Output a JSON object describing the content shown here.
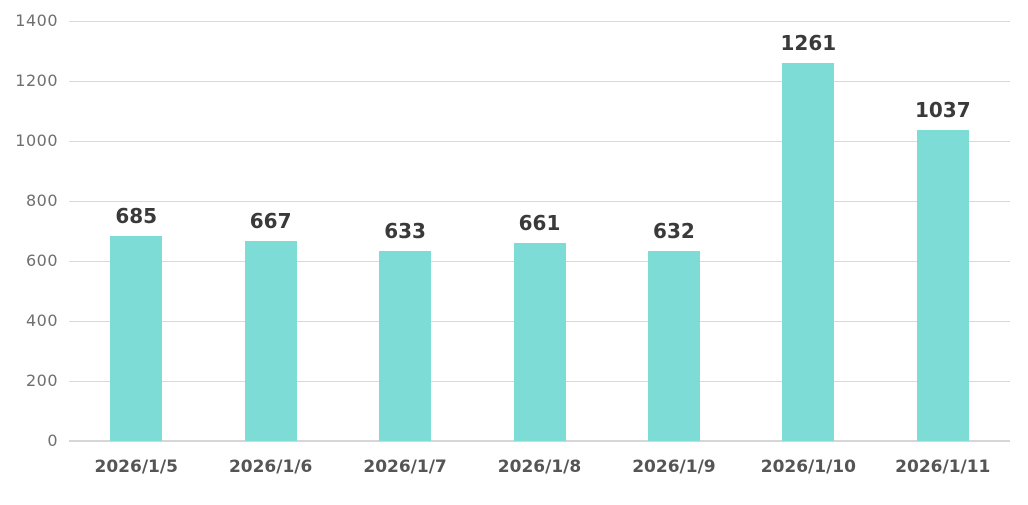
{
  "chart_data": {
    "type": "bar",
    "title": "",
    "xlabel": "",
    "ylabel": "",
    "categories": [
      "2026/1/5",
      "2026/1/6",
      "2026/1/7",
      "2026/1/8",
      "2026/1/9",
      "2026/1/10",
      "2026/1/11"
    ],
    "values": [
      685,
      667,
      633,
      661,
      632,
      1261,
      1037
    ],
    "value_labels": [
      "685",
      "667",
      "633",
      "661",
      "632",
      "1261",
      "1037"
    ],
    "ylim": [
      0,
      1400
    ],
    "yticks": [
      0,
      200,
      400,
      600,
      800,
      1000,
      1200,
      1400
    ],
    "grid": true,
    "legend": false,
    "colors": {
      "bar": "#7ddcd5",
      "gridline": "#d9d9d9",
      "baseline": "#d6d6d6",
      "ytick_text": "#6f6f6f",
      "xtick_text": "#555555",
      "value_text": "#3a3a3a",
      "background": "#ffffff"
    }
  }
}
